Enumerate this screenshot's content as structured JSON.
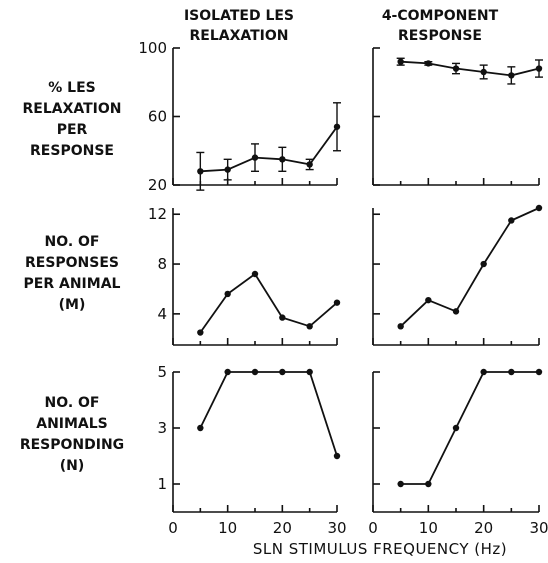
{
  "figure": {
    "col_titles": [
      [
        "ISOLATED LES",
        "RELAXATION"
      ],
      [
        "4-COMPONENT",
        "RESPONSE"
      ]
    ],
    "row_labels": [
      [
        "% LES",
        "RELAXATION",
        "PER",
        "RESPONSE"
      ],
      [
        "NO. OF",
        "RESPONSES",
        "PER ANIMAL",
        "(M)"
      ],
      [
        "NO. OF",
        "ANIMALS",
        "RESPONDING",
        "(N)"
      ]
    ],
    "xlabel": "SLN STIMULUS FREQUENCY (Hz)"
  },
  "chart_data": [
    {
      "type": "line",
      "row": 0,
      "col": 0,
      "x": [
        5,
        10,
        15,
        20,
        25,
        30
      ],
      "y": [
        28,
        29,
        36,
        35,
        32,
        54
      ],
      "yerr": [
        11,
        6,
        8,
        7,
        3,
        14
      ],
      "ylim": [
        20,
        100
      ],
      "yticks": [
        20,
        60,
        100
      ],
      "xlim": [
        0,
        30
      ],
      "xticks": [
        0,
        10,
        20,
        30
      ]
    },
    {
      "type": "line",
      "row": 0,
      "col": 1,
      "x": [
        5,
        10,
        15,
        20,
        25,
        30
      ],
      "y": [
        92,
        91,
        88,
        86,
        84,
        88
      ],
      "yerr": [
        2,
        1,
        3,
        4,
        5,
        5
      ],
      "ylim": [
        20,
        100
      ],
      "yticks": [
        20,
        60,
        100
      ],
      "xlim": [
        0,
        30
      ],
      "xticks": [
        0,
        10,
        20,
        30
      ]
    },
    {
      "type": "line",
      "row": 1,
      "col": 0,
      "x": [
        5,
        10,
        15,
        20,
        25,
        30
      ],
      "y": [
        2.5,
        5.6,
        7.2,
        3.7,
        3.0,
        4.9
      ],
      "ylim": [
        1.5,
        12.5
      ],
      "yticks": [
        4,
        8,
        12
      ],
      "xlim": [
        0,
        30
      ],
      "xticks": [
        0,
        10,
        20,
        30
      ]
    },
    {
      "type": "line",
      "row": 1,
      "col": 1,
      "x": [
        5,
        10,
        15,
        20,
        25,
        30
      ],
      "y": [
        3.0,
        5.1,
        4.2,
        8.0,
        11.5,
        12.5
      ],
      "ylim": [
        1.5,
        12.5
      ],
      "yticks": [
        4,
        8,
        12
      ],
      "xlim": [
        0,
        30
      ],
      "xticks": [
        0,
        10,
        20,
        30
      ]
    },
    {
      "type": "line",
      "row": 2,
      "col": 0,
      "x": [
        5,
        10,
        15,
        20,
        25,
        30
      ],
      "y": [
        3,
        5,
        5,
        5,
        5,
        2
      ],
      "ylim": [
        0,
        5
      ],
      "yticks": [
        1,
        3,
        5
      ],
      "xlim": [
        0,
        30
      ],
      "xticks": [
        0,
        10,
        20,
        30
      ]
    },
    {
      "type": "line",
      "row": 2,
      "col": 1,
      "x": [
        5,
        10,
        15,
        20,
        25,
        30
      ],
      "y": [
        1,
        1,
        3,
        5,
        5,
        5
      ],
      "ylim": [
        0,
        5
      ],
      "yticks": [
        1,
        3,
        5
      ],
      "xlim": [
        0,
        30
      ],
      "xticks": [
        0,
        10,
        20,
        30
      ]
    }
  ]
}
